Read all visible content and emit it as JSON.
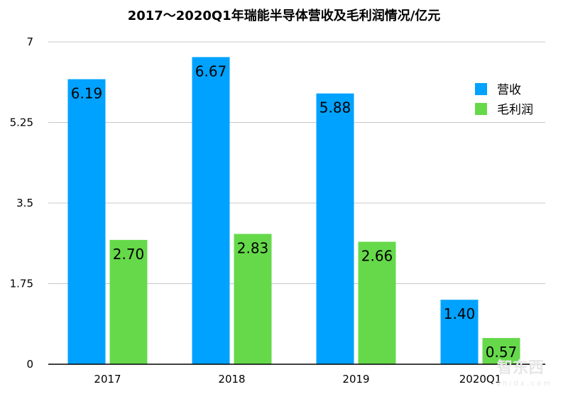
{
  "chart_data": {
    "type": "bar",
    "title": "2017～2020Q1年瑞能半导体营收及毛利润情况/亿元",
    "categories": [
      "2017",
      "2018",
      "2019",
      "2020Q1"
    ],
    "series": [
      {
        "name": "营收",
        "values": [
          6.19,
          6.67,
          5.88,
          1.4
        ],
        "labels": [
          "6.19",
          "6.67",
          "5.88",
          "1.40"
        ],
        "color": "#00A2FF"
      },
      {
        "name": "毛利润",
        "values": [
          2.7,
          2.83,
          2.66,
          0.57
        ],
        "labels": [
          "2.70",
          "2.83",
          "2.66",
          "0.57"
        ],
        "color": "#66D94A"
      }
    ],
    "yticks": [
      0,
      1.75,
      3.5,
      5.25,
      7
    ],
    "ytick_labels": [
      "0",
      "1.75",
      "3.5",
      "5.25",
      "7"
    ],
    "ylim": [
      0,
      7
    ],
    "xlabel": "",
    "ylabel": "",
    "grid": true,
    "legend_position": "top-right"
  },
  "watermark": {
    "text": "智东西",
    "url": "zhidx.com"
  }
}
